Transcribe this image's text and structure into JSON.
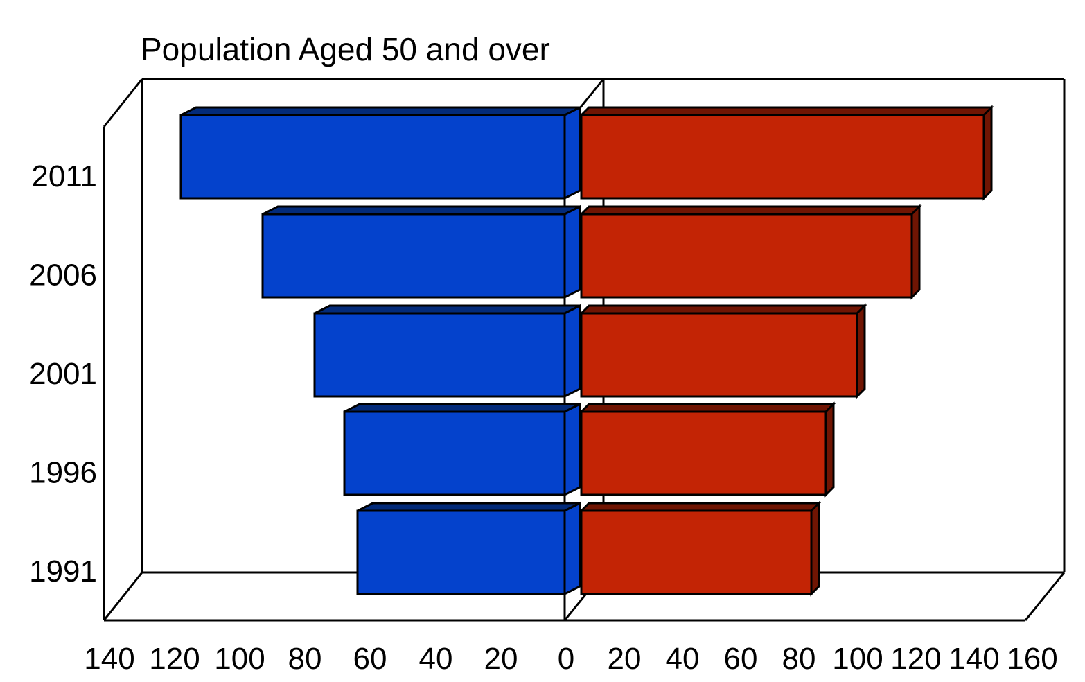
{
  "chart_data": {
    "type": "bar",
    "variant": "3d-horizontal-pyramid",
    "title": "Population Aged 50 and over",
    "categories": [
      "2011",
      "2006",
      "2001",
      "1996",
      "1991"
    ],
    "series": [
      {
        "name": "left-series",
        "color": "#0442CC",
        "color_dark": "#032B7A",
        "values": [
          118,
          93,
          77,
          68,
          64
        ]
      },
      {
        "name": "right-series",
        "color": "#C32405",
        "color_dark": "#701503",
        "values": [
          140,
          115,
          96,
          85,
          80
        ]
      }
    ],
    "x_axis": {
      "ticks": [
        {
          "label": "140",
          "value": -140
        },
        {
          "label": "120",
          "value": -120
        },
        {
          "label": "100",
          "value": -100
        },
        {
          "label": "80",
          "value": -80
        },
        {
          "label": "60",
          "value": -60
        },
        {
          "label": "40",
          "value": -40
        },
        {
          "label": "20",
          "value": -20
        },
        {
          "label": "0",
          "value": 0
        },
        {
          "label": "20",
          "value": 20
        },
        {
          "label": "40",
          "value": 40
        },
        {
          "label": "60",
          "value": 60
        },
        {
          "label": "80",
          "value": 80
        },
        {
          "label": "100",
          "value": 100
        },
        {
          "label": "120",
          "value": 120
        },
        {
          "label": "140",
          "value": 140
        },
        {
          "label": "160",
          "value": 160
        }
      ],
      "left_max": 140,
      "right_max": 160
    },
    "legend": "none",
    "grid": "zero-plane-only",
    "background": "#ffffff",
    "outline_color": "#000000"
  }
}
